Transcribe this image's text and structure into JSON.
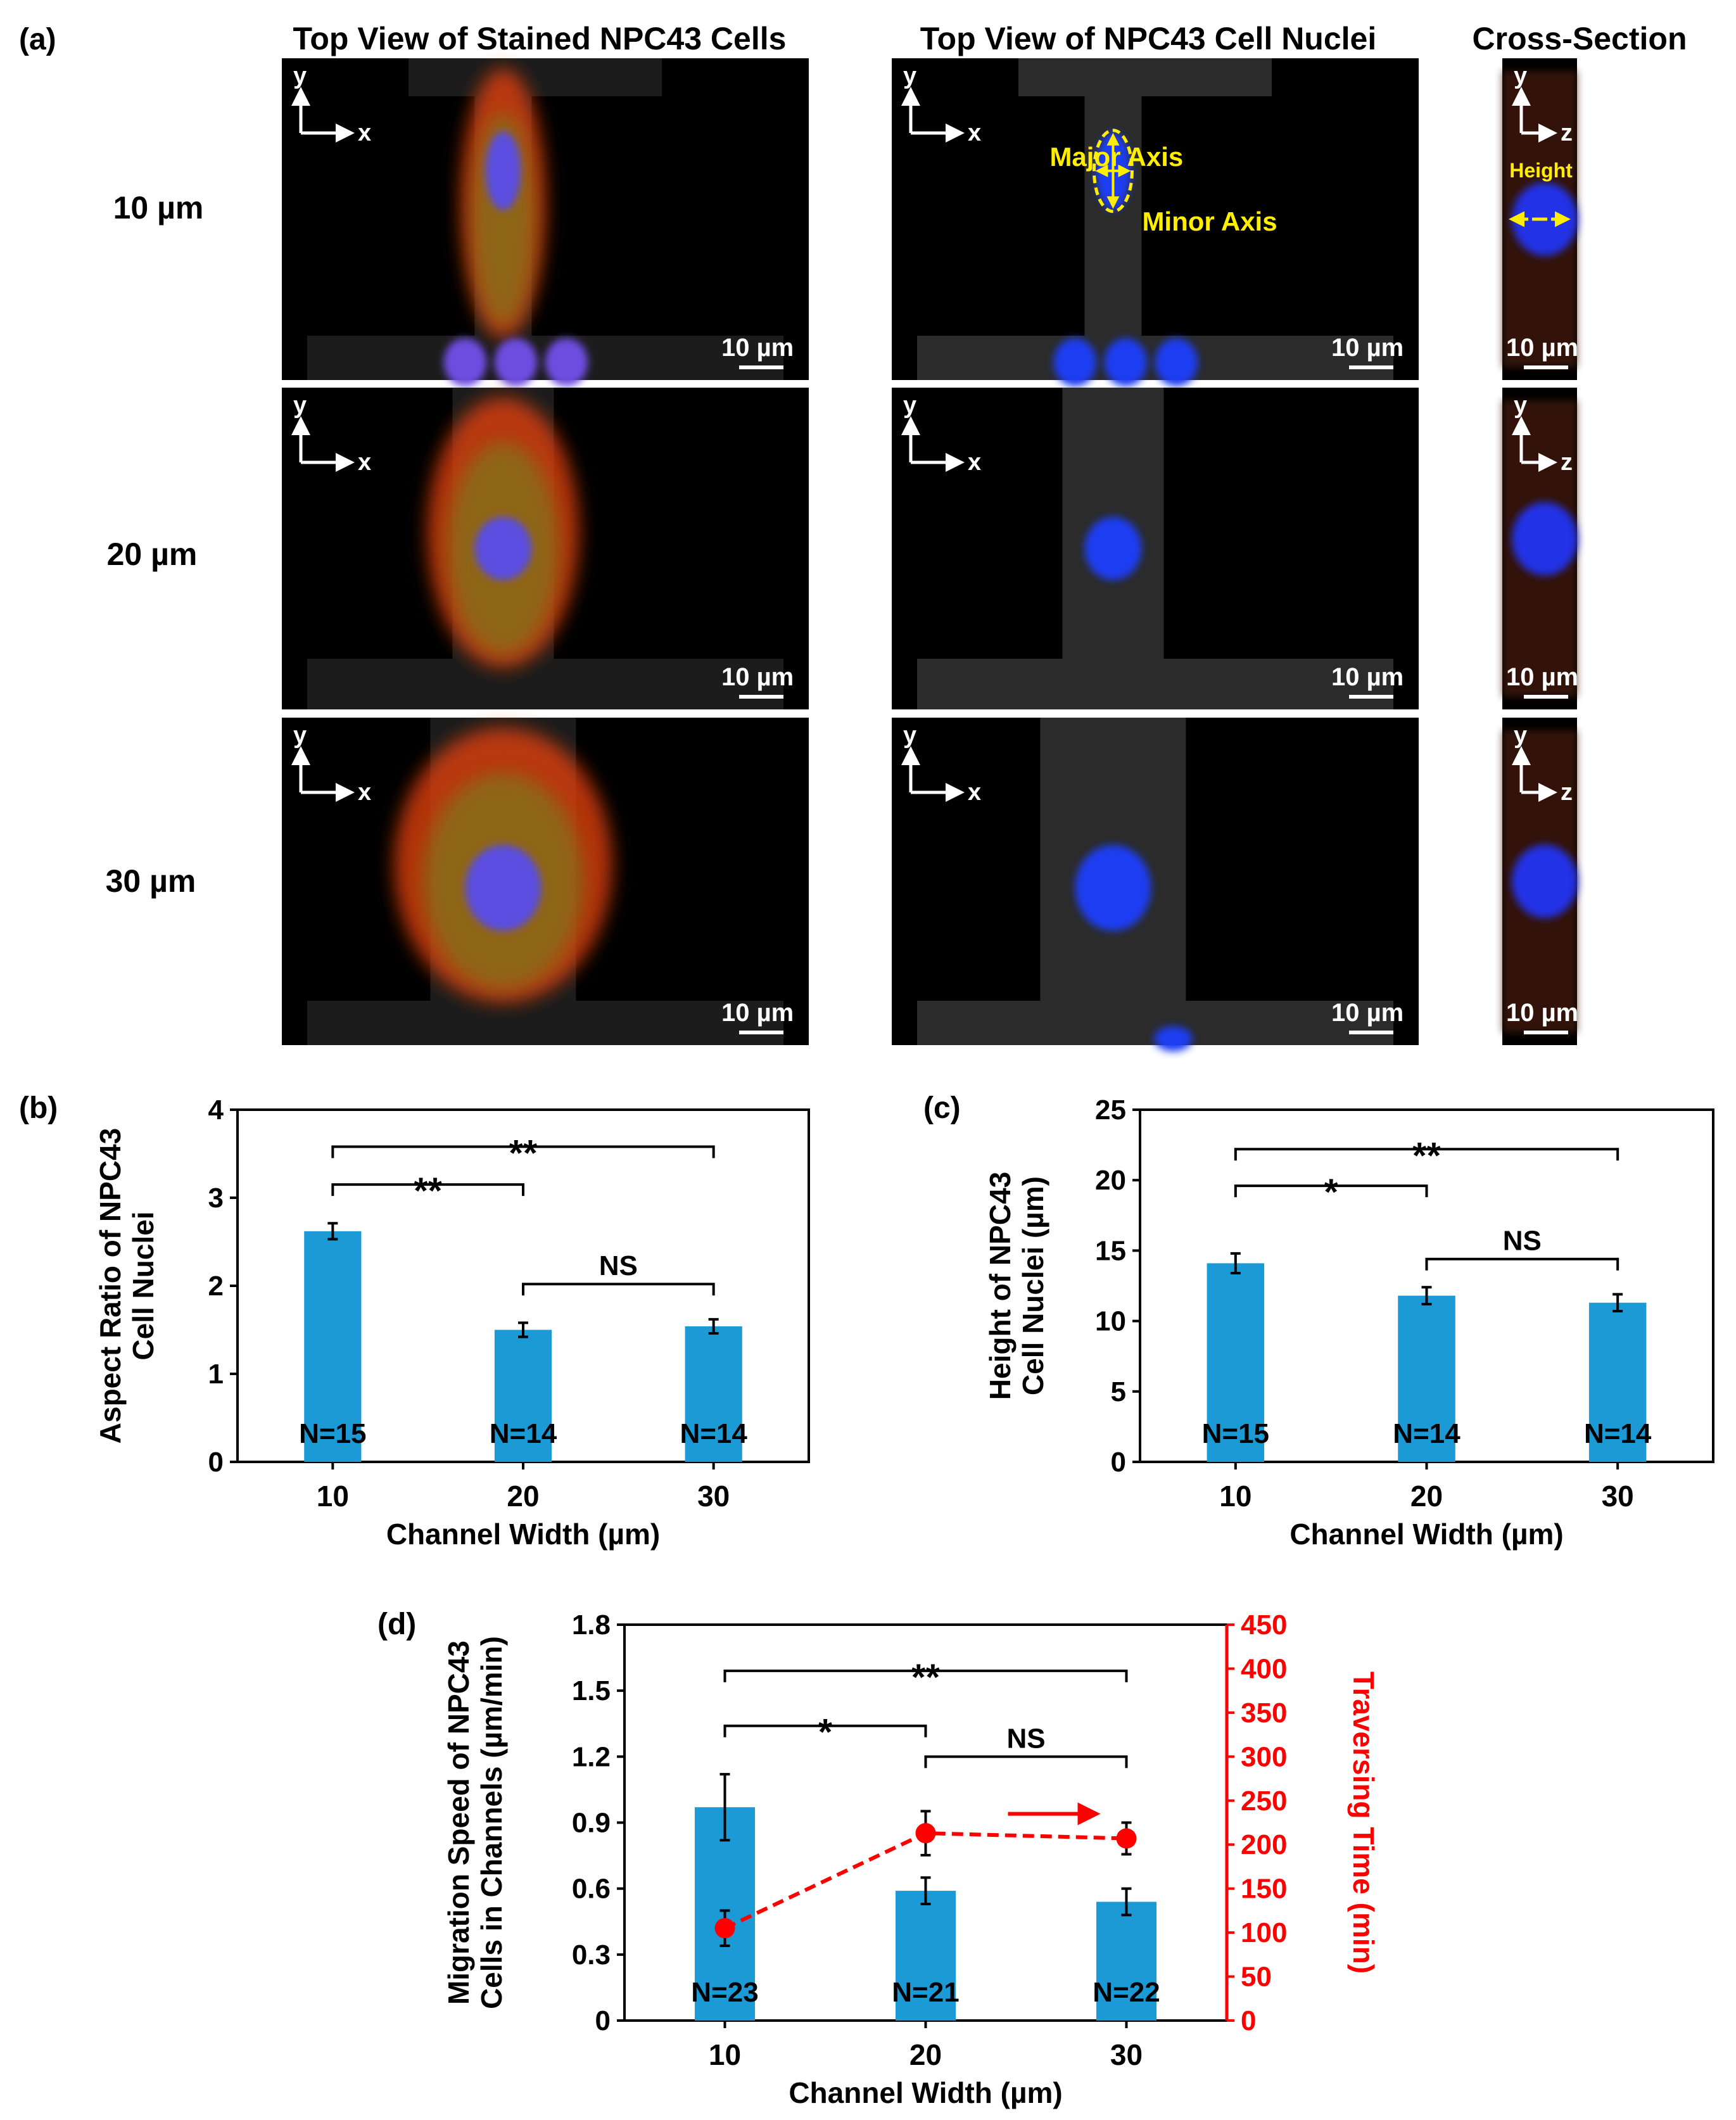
{
  "panel_letters": {
    "a": "(a)",
    "b": "(b)",
    "c": "(c)",
    "d": "(d)"
  },
  "panel_a": {
    "column_titles": [
      "Top View of Stained NPC43 Cells",
      "Top View of NPC43 Cell Nuclei",
      "Cross-Section"
    ],
    "row_labels": [
      "10 µm",
      "20 µm",
      "30 µm"
    ],
    "scale_bar_label": "10 µm",
    "axis_y": "y",
    "axis_x": "x",
    "axis_z": "z",
    "annotations": {
      "major_axis": "Major Axis",
      "minor_axis": "Minor Axis",
      "height": "Height"
    }
  },
  "chart_data": [
    {
      "id": "b",
      "type": "bar",
      "categories": [
        "10",
        "20",
        "30"
      ],
      "values": [
        2.62,
        1.5,
        1.54
      ],
      "errors": [
        0.09,
        0.08,
        0.08
      ],
      "n_labels": [
        "N=15",
        "N=14",
        "N=14"
      ],
      "ylabel_lines": [
        "Aspect Ratio of NPC43",
        "Cell Nuclei"
      ],
      "xlabel": "Channel Width (µm)",
      "ylim": [
        0,
        4
      ],
      "yticks": [
        0,
        1,
        2,
        3,
        4
      ],
      "significance": [
        {
          "from": 0,
          "to": 1,
          "y": 3.15,
          "label": "**"
        },
        {
          "from": 0,
          "to": 2,
          "y": 3.58,
          "label": "**"
        },
        {
          "from": 1,
          "to": 2,
          "y": 2.02,
          "label": "NS"
        }
      ],
      "bar_color": "#1b9ad6"
    },
    {
      "id": "c",
      "type": "bar",
      "categories": [
        "10",
        "20",
        "30"
      ],
      "values": [
        14.1,
        11.8,
        11.3
      ],
      "errors": [
        0.7,
        0.6,
        0.6
      ],
      "n_labels": [
        "N=15",
        "N=14",
        "N=14"
      ],
      "ylabel_lines": [
        "Height of NPC43",
        "Cell Nuclei (µm)"
      ],
      "xlabel": "Channel Width (µm)",
      "ylim": [
        0,
        25
      ],
      "yticks": [
        0,
        5,
        10,
        15,
        20,
        25
      ],
      "significance": [
        {
          "from": 0,
          "to": 1,
          "y": 19.6,
          "label": "*"
        },
        {
          "from": 0,
          "to": 2,
          "y": 22.2,
          "label": "**"
        },
        {
          "from": 1,
          "to": 2,
          "y": 14.4,
          "label": "NS"
        }
      ],
      "bar_color": "#1b9ad6"
    },
    {
      "id": "d",
      "type": "bar",
      "categories": [
        "10",
        "20",
        "30"
      ],
      "values": [
        0.97,
        0.59,
        0.54
      ],
      "errors": [
        0.15,
        0.06,
        0.06
      ],
      "n_labels": [
        "N=23",
        "N=21",
        "N=22"
      ],
      "ylabel_lines": [
        "Migration Speed of NPC43",
        "Cells in Channels (µm/min)"
      ],
      "xlabel": "Channel Width (µm)",
      "ylim": [
        0,
        1.8
      ],
      "yticks": [
        0,
        0.3,
        0.6,
        0.9,
        1.2,
        1.5,
        1.8
      ],
      "ytick_labels": [
        "0",
        "0.3",
        "0.6",
        "0.9",
        "1.2",
        "1.5",
        "1.8"
      ],
      "y2label": "Traversing Time (min)",
      "y2lim": [
        0,
        450
      ],
      "y2ticks": [
        0,
        50,
        100,
        150,
        200,
        250,
        300,
        350,
        400,
        450
      ],
      "line_series": {
        "name": "Traversing Time (min)",
        "values": [
          105,
          213,
          207
        ],
        "errors": [
          20,
          25,
          18
        ],
        "color": "#ff0000"
      },
      "significance": [
        {
          "from": 0,
          "to": 1,
          "y": 1.34,
          "label": "*"
        },
        {
          "from": 0,
          "to": 2,
          "y": 1.59,
          "label": "**"
        },
        {
          "from": 1,
          "to": 2,
          "y": 1.2,
          "label": "NS"
        }
      ],
      "bar_color": "#1b9ad6"
    }
  ]
}
